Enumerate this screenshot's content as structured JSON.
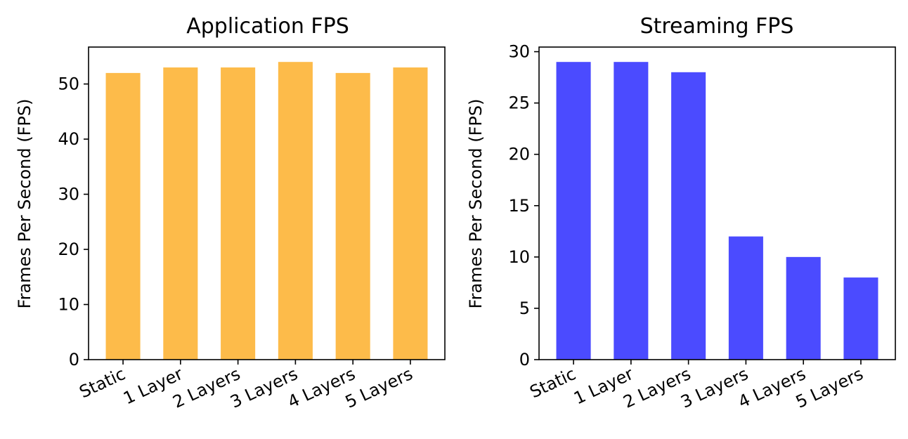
{
  "chart_data": [
    {
      "type": "bar",
      "title": "Application FPS",
      "ylabel": "Frames Per Second (FPS)",
      "xlabel": "",
      "categories": [
        "Static",
        "1 Layer",
        "2 Layers",
        "3 Layers",
        "4 Layers",
        "5 Layers"
      ],
      "values": [
        52,
        53,
        53,
        54,
        52,
        53
      ],
      "ylim": [
        0,
        56.7
      ],
      "yticks": [
        0,
        10,
        20,
        30,
        40,
        50
      ],
      "color": "#FDBB4A",
      "grid": false
    },
    {
      "type": "bar",
      "title": "Streaming FPS",
      "ylabel": "Frames Per Second (FPS)",
      "xlabel": "",
      "categories": [
        "Static",
        "1 Layer",
        "2 Layers",
        "3 Layers",
        "4 Layers",
        "5 Layers"
      ],
      "values": [
        29,
        29,
        28,
        12,
        10,
        8
      ],
      "ylim": [
        0,
        30.45
      ],
      "yticks": [
        0,
        5,
        10,
        15,
        20,
        25,
        30
      ],
      "color": "#4B4BFF",
      "grid": false
    }
  ]
}
